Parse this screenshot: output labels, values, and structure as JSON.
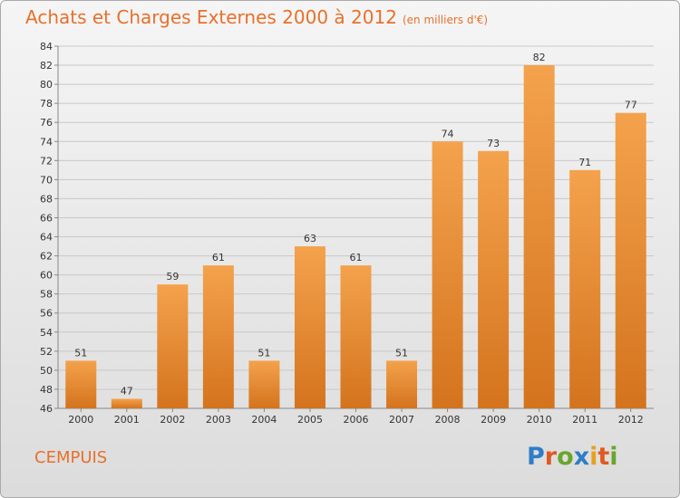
{
  "header": {
    "title": "Achats et Charges Externes 2000 à 2012",
    "unit": "(en milliers d'€)"
  },
  "footer": {
    "city": "CEMPUIS",
    "logo_letters": [
      "P",
      "r",
      "o",
      "x",
      "i",
      "t",
      "i"
    ],
    "logo_colors": [
      "#2f7dc8",
      "#e05a1f",
      "#6aa62d",
      "#2f7dc8",
      "#e8a020",
      "#e05a1f",
      "#6aa62d"
    ]
  },
  "colors": {
    "bar_top": "#f4a24d",
    "bar_bottom": "#d4731d",
    "accent": "#e8702a",
    "grid": "#c8c8c8",
    "axis": "#888888"
  },
  "chart_data": {
    "type": "bar",
    "categories": [
      "2000",
      "2001",
      "2002",
      "2003",
      "2004",
      "2005",
      "2006",
      "2007",
      "2008",
      "2009",
      "2010",
      "2011",
      "2012"
    ],
    "values": [
      51,
      47,
      59,
      61,
      51,
      63,
      61,
      51,
      74,
      73,
      82,
      71,
      77
    ],
    "title": "Achats et Charges Externes 2000 à 2012",
    "subtitle": "(en milliers d'€)",
    "xlabel": "",
    "ylabel": "",
    "ylim": [
      46,
      84
    ],
    "yticks": [
      46,
      48,
      50,
      52,
      54,
      56,
      58,
      60,
      62,
      64,
      66,
      68,
      70,
      72,
      74,
      76,
      78,
      80,
      82,
      84
    ],
    "data_labels": true,
    "grid": true,
    "legend": "none"
  }
}
